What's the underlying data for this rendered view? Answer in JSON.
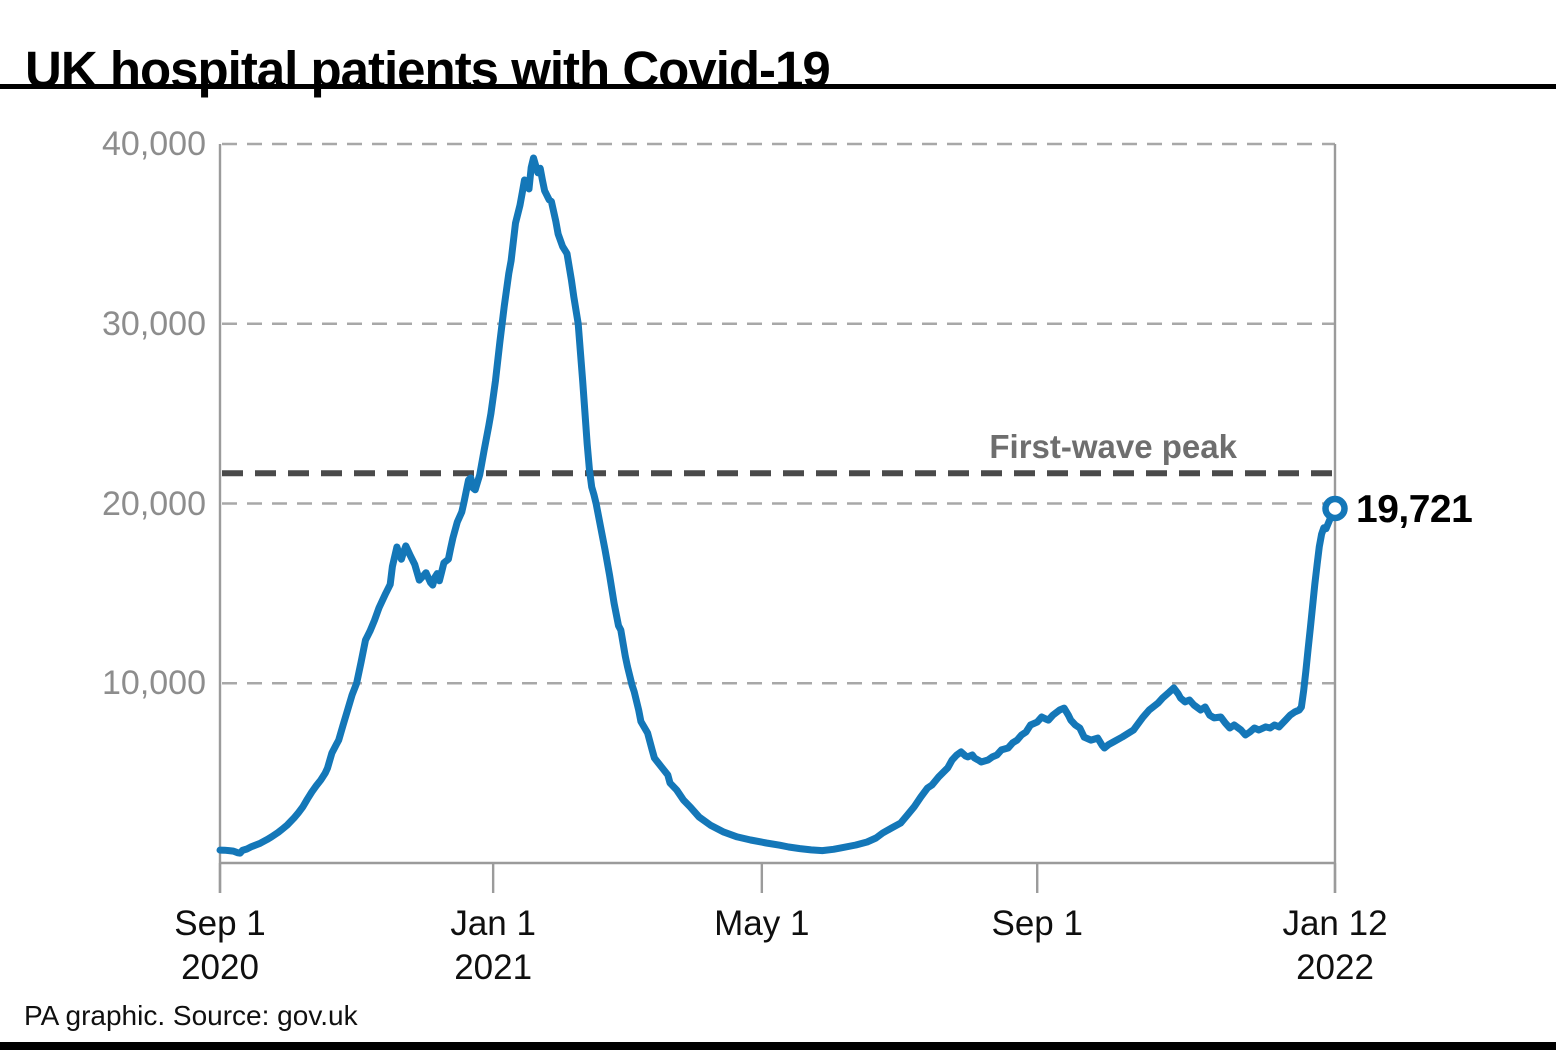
{
  "header": {
    "title": "UK hospital patients with Covid-19"
  },
  "footer": {
    "credit": "PA graphic. Source: gov.uk"
  },
  "annotations": {
    "first_wave_peak_label": "First-wave peak",
    "latest_value_label": "19,721"
  },
  "colors": {
    "line": "#1477b8",
    "grid": "#a8a8a8",
    "axis": "#9b9b9b",
    "reference_line": "#4a4a4a",
    "y_label": "#8d8d8d",
    "x_label": "#0f0f0f",
    "annotation": "#6e6e6e",
    "title": "#000000"
  },
  "chart_data": {
    "type": "line",
    "title": "UK hospital patients with Covid-19",
    "xlabel": "",
    "ylabel": "",
    "x_unit": "days since 1 Sep 2020",
    "x_range_days": [
      0,
      498
    ],
    "ylim": [
      0,
      40000
    ],
    "grid": "horizontal dashed",
    "legend_position": "none",
    "y_ticks": [
      {
        "label": "40,000",
        "value": 40000
      },
      {
        "label": "30,000",
        "value": 30000
      },
      {
        "label": "20,000",
        "value": 20000
      },
      {
        "label": "10,000",
        "value": 10000
      }
    ],
    "x_ticks": [
      {
        "line1": "Sep 1",
        "line2": "2020",
        "day": 0
      },
      {
        "line1": "Jan 1",
        "line2": "2021",
        "day": 122
      },
      {
        "line1": "May 1",
        "line2": "",
        "day": 242
      },
      {
        "line1": "Sep 1",
        "line2": "",
        "day": 365
      },
      {
        "line1": "Jan 12",
        "line2": "2022",
        "day": 498
      }
    ],
    "reference_line": {
      "label": "First-wave peak",
      "value": 21684
    },
    "end_marker": {
      "day": 498,
      "value": 19721,
      "label": "19,721"
    },
    "series": [
      {
        "name": "UK hospital patients with Covid-19",
        "points_day_value": [
          [
            0,
            720
          ],
          [
            2,
            710
          ],
          [
            4,
            690
          ],
          [
            6,
            660
          ],
          [
            8,
            570
          ],
          [
            9,
            550
          ],
          [
            10,
            700
          ],
          [
            12,
            780
          ],
          [
            14,
            900
          ],
          [
            16,
            1000
          ],
          [
            18,
            1100
          ],
          [
            21,
            1300
          ],
          [
            23,
            1450
          ],
          [
            26,
            1700
          ],
          [
            28,
            1900
          ],
          [
            30,
            2110
          ],
          [
            33,
            2500
          ],
          [
            35,
            2800
          ],
          [
            37,
            3120
          ],
          [
            39,
            3550
          ],
          [
            41,
            3950
          ],
          [
            43,
            4300
          ],
          [
            45,
            4620
          ],
          [
            47,
            5000
          ],
          [
            48,
            5280
          ],
          [
            50,
            6120
          ],
          [
            52,
            6600
          ],
          [
            53,
            6840
          ],
          [
            55,
            7680
          ],
          [
            57,
            8510
          ],
          [
            59,
            9350
          ],
          [
            61,
            10000
          ],
          [
            63,
            11180
          ],
          [
            65,
            12400
          ],
          [
            67,
            12900
          ],
          [
            69,
            13500
          ],
          [
            71,
            14200
          ],
          [
            74,
            15000
          ],
          [
            76,
            15500
          ],
          [
            77,
            16500
          ],
          [
            79,
            17580
          ],
          [
            80,
            17200
          ],
          [
            81,
            16900
          ],
          [
            82,
            17300
          ],
          [
            83,
            17640
          ],
          [
            85,
            17100
          ],
          [
            87,
            16600
          ],
          [
            89,
            15740
          ],
          [
            91,
            16000
          ],
          [
            92,
            16150
          ],
          [
            94,
            15600
          ],
          [
            95,
            15460
          ],
          [
            96,
            15900
          ],
          [
            97,
            16100
          ],
          [
            98,
            15700
          ],
          [
            99,
            16200
          ],
          [
            100,
            16700
          ],
          [
            102,
            16900
          ],
          [
            103,
            17500
          ],
          [
            104,
            18080
          ],
          [
            106,
            18970
          ],
          [
            108,
            19530
          ],
          [
            109,
            20080
          ],
          [
            111,
            21300
          ],
          [
            112,
            21420
          ],
          [
            113,
            20860
          ],
          [
            114,
            20760
          ],
          [
            116,
            21590
          ],
          [
            118,
            22980
          ],
          [
            120,
            24300
          ],
          [
            121,
            25000
          ],
          [
            123,
            26800
          ],
          [
            125,
            29000
          ],
          [
            127,
            31000
          ],
          [
            129,
            32800
          ],
          [
            130,
            33500
          ],
          [
            132,
            35600
          ],
          [
            134,
            36600
          ],
          [
            135,
            37300
          ],
          [
            136,
            38000
          ],
          [
            137,
            37800
          ],
          [
            138,
            37500
          ],
          [
            139,
            38700
          ],
          [
            140,
            39220
          ],
          [
            141,
            38800
          ],
          [
            142,
            38400
          ],
          [
            143,
            38650
          ],
          [
            144,
            38000
          ],
          [
            145,
            37400
          ],
          [
            147,
            36900
          ],
          [
            148,
            36800
          ],
          [
            150,
            35700
          ],
          [
            151,
            35000
          ],
          [
            153,
            34300
          ],
          [
            155,
            33900
          ],
          [
            157,
            32400
          ],
          [
            158,
            31500
          ],
          [
            160,
            30000
          ],
          [
            162,
            26800
          ],
          [
            164,
            23300
          ],
          [
            165,
            21900
          ],
          [
            166,
            20920
          ],
          [
            167,
            20500
          ],
          [
            168,
            20000
          ],
          [
            170,
            18700
          ],
          [
            172,
            17400
          ],
          [
            174,
            16000
          ],
          [
            176,
            14450
          ],
          [
            178,
            13200
          ],
          [
            179,
            12960
          ],
          [
            181,
            11500
          ],
          [
            182,
            10920
          ],
          [
            184,
            9900
          ],
          [
            185,
            9530
          ],
          [
            187,
            8500
          ],
          [
            188,
            7870
          ],
          [
            191,
            7230
          ],
          [
            193,
            6300
          ],
          [
            194,
            5840
          ],
          [
            197,
            5370
          ],
          [
            200,
            4900
          ],
          [
            201,
            4450
          ],
          [
            204,
            4060
          ],
          [
            207,
            3500
          ],
          [
            210,
            3120
          ],
          [
            214,
            2560
          ],
          [
            219,
            2110
          ],
          [
            225,
            1720
          ],
          [
            231,
            1450
          ],
          [
            237,
            1280
          ],
          [
            244,
            1110
          ],
          [
            250,
            990
          ],
          [
            254,
            890
          ],
          [
            259,
            800
          ],
          [
            264,
            730
          ],
          [
            269,
            690
          ],
          [
            274,
            760
          ],
          [
            277,
            830
          ],
          [
            284,
            1000
          ],
          [
            289,
            1170
          ],
          [
            293,
            1390
          ],
          [
            296,
            1670
          ],
          [
            300,
            1950
          ],
          [
            304,
            2220
          ],
          [
            307,
            2670
          ],
          [
            310,
            3120
          ],
          [
            313,
            3670
          ],
          [
            316,
            4170
          ],
          [
            318,
            4340
          ],
          [
            321,
            4790
          ],
          [
            325,
            5290
          ],
          [
            327,
            5730
          ],
          [
            329,
            6000
          ],
          [
            331,
            6180
          ],
          [
            333,
            5950
          ],
          [
            334,
            5900
          ],
          [
            336,
            6010
          ],
          [
            337,
            5840
          ],
          [
            339,
            5700
          ],
          [
            340,
            5620
          ],
          [
            343,
            5730
          ],
          [
            345,
            5900
          ],
          [
            347,
            6010
          ],
          [
            349,
            6290
          ],
          [
            352,
            6400
          ],
          [
            354,
            6680
          ],
          [
            356,
            6840
          ],
          [
            358,
            7120
          ],
          [
            360,
            7290
          ],
          [
            362,
            7680
          ],
          [
            365,
            7840
          ],
          [
            367,
            8120
          ],
          [
            369,
            8000
          ],
          [
            370,
            7950
          ],
          [
            372,
            8230
          ],
          [
            375,
            8510
          ],
          [
            377,
            8620
          ],
          [
            379,
            8200
          ],
          [
            380,
            7950
          ],
          [
            382,
            7680
          ],
          [
            384,
            7510
          ],
          [
            386,
            7000
          ],
          [
            389,
            6840
          ],
          [
            392,
            6950
          ],
          [
            394,
            6550
          ],
          [
            395,
            6400
          ],
          [
            397,
            6600
          ],
          [
            399,
            6730
          ],
          [
            403,
            7010
          ],
          [
            408,
            7400
          ],
          [
            412,
            8070
          ],
          [
            415,
            8510
          ],
          [
            419,
            8900
          ],
          [
            421,
            9180
          ],
          [
            424,
            9510
          ],
          [
            426,
            9740
          ],
          [
            428,
            9400
          ],
          [
            429,
            9180
          ],
          [
            431,
            8960
          ],
          [
            433,
            9070
          ],
          [
            435,
            8790
          ],
          [
            438,
            8510
          ],
          [
            440,
            8680
          ],
          [
            442,
            8230
          ],
          [
            444,
            8070
          ],
          [
            447,
            8120
          ],
          [
            449,
            7790
          ],
          [
            451,
            7510
          ],
          [
            453,
            7680
          ],
          [
            456,
            7400
          ],
          [
            458,
            7120
          ],
          [
            460,
            7290
          ],
          [
            462,
            7510
          ],
          [
            464,
            7400
          ],
          [
            467,
            7570
          ],
          [
            469,
            7510
          ],
          [
            471,
            7680
          ],
          [
            473,
            7570
          ],
          [
            476,
            7960
          ],
          [
            478,
            8230
          ],
          [
            480,
            8400
          ],
          [
            482,
            8510
          ],
          [
            483,
            8680
          ],
          [
            484,
            9600
          ],
          [
            485,
            10700
          ],
          [
            486,
            11900
          ],
          [
            487,
            13100
          ],
          [
            488,
            14300
          ],
          [
            489,
            15500
          ],
          [
            490,
            16600
          ],
          [
            491,
            17600
          ],
          [
            492,
            18300
          ],
          [
            493,
            18650
          ],
          [
            494,
            18600
          ],
          [
            495,
            18900
          ],
          [
            496,
            19200
          ],
          [
            497,
            19500
          ],
          [
            498,
            19721
          ]
        ]
      }
    ]
  }
}
